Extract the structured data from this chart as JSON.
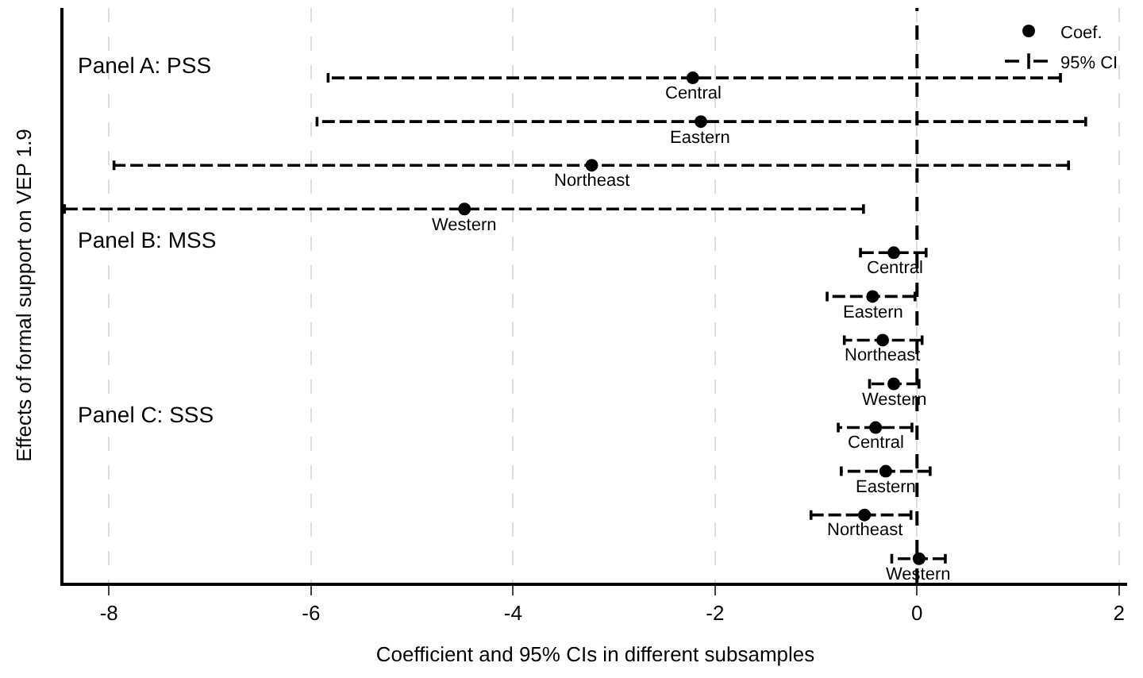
{
  "chart_data": {
    "type": "scatter",
    "orientation": "horizontal",
    "xlabel": "Coefficient and 95% CIs in different subsamples",
    "ylabel": "Effects of formal support on VEP 1.9",
    "categories": [
      "Central",
      "Eastern",
      "Northeast",
      "Western",
      "Central",
      "Eastern",
      "Northeast",
      "Western",
      "Central",
      "Eastern",
      "Northeast",
      "Western"
    ],
    "series": [
      {
        "name": "Coef.",
        "color": "#000000",
        "values": [
          -2.22,
          -2.14,
          -3.22,
          -4.48,
          -0.23,
          -0.44,
          -0.34,
          -0.23,
          -0.41,
          -0.31,
          -0.52,
          0.02
        ],
        "errors": [
          [
            -5.83,
            1.42
          ],
          [
            -5.94,
            1.67
          ],
          [
            -7.95,
            1.5
          ],
          [
            -8.44,
            -0.53
          ],
          [
            -0.56,
            0.09
          ],
          [
            -0.89,
            -0.02
          ],
          [
            -0.72,
            0.05
          ],
          [
            -0.47,
            0.02
          ],
          [
            -0.78,
            -0.05
          ],
          [
            -0.75,
            0.13
          ],
          [
            -1.05,
            -0.06
          ],
          [
            -0.25,
            0.28
          ]
        ]
      }
    ],
    "annotations": [
      "Panel A: PSS",
      "Panel B: MSS",
      "Panel C: SSS",
      "95% CI"
    ],
    "xlim": [
      -8.45,
      2.08
    ],
    "xticks": [
      -8,
      -6,
      -4,
      -2,
      0,
      2
    ],
    "ref_lines": [
      {
        "axis": "x",
        "value": 0,
        "line_style": "dashed",
        "color": "#000000"
      }
    ],
    "grid": "x",
    "legend": "top right",
    "marker": "circle",
    "line_style": "dashed",
    "tick_labels": "x"
  }
}
